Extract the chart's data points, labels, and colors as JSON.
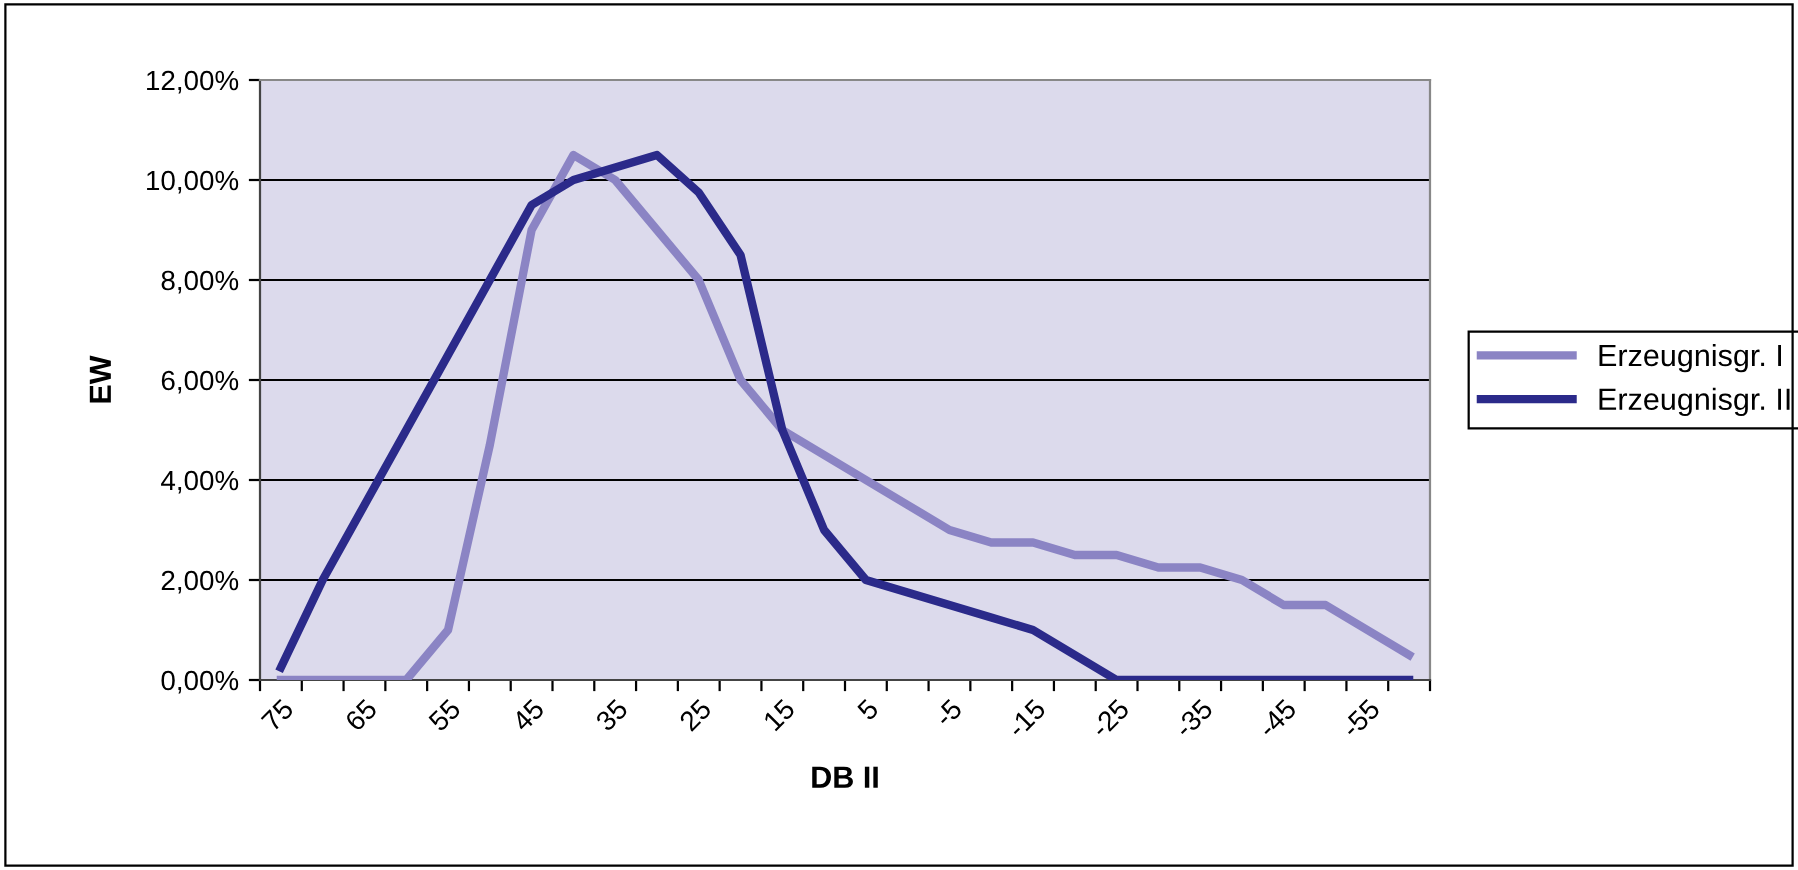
{
  "chart_data": {
    "type": "line",
    "xlabel": "DB II",
    "ylabel": "EW",
    "categories": [
      "75",
      null,
      "65",
      null,
      "55",
      null,
      "45",
      null,
      "35",
      null,
      "25",
      null,
      "15",
      null,
      "5",
      null,
      "-5",
      null,
      "-15",
      null,
      "-25",
      null,
      "-35",
      null,
      "-45",
      null,
      "-55",
      null
    ],
    "series": [
      {
        "name": "Erzeugnisgr. I",
        "color": "#8b84c4",
        "values": [
          0,
          0,
          0,
          0,
          1.0,
          4.7,
          9.0,
          10.5,
          10.0,
          9.0,
          8.0,
          6.0,
          5.0,
          4.5,
          4.0,
          3.5,
          3.0,
          2.75,
          2.75,
          2.5,
          2.5,
          2.25,
          2.25,
          2.0,
          1.5,
          1.5,
          1.0,
          0.5
        ]
      },
      {
        "name": "Erzeugnisgr. II",
        "color": "#2b2a8a",
        "values": [
          0.25,
          2.0,
          3.5,
          5.0,
          6.5,
          8.0,
          9.5,
          10.0,
          10.25,
          10.5,
          9.75,
          8.5,
          5.0,
          3.0,
          2.0,
          1.75,
          1.5,
          1.25,
          1.0,
          0.5,
          0,
          0,
          0,
          0,
          0,
          0,
          0,
          0
        ]
      }
    ],
    "ylim": [
      0,
      12
    ],
    "yticks": [
      {
        "value": 0,
        "label": "0,00%"
      },
      {
        "value": 2,
        "label": "2,00%"
      },
      {
        "value": 4,
        "label": "4,00%"
      },
      {
        "value": 6,
        "label": "6,00%"
      },
      {
        "value": 8,
        "label": "8,00%"
      },
      {
        "value": 10,
        "label": "10,00%"
      },
      {
        "value": 12,
        "label": "12,00%"
      }
    ],
    "grid": "y",
    "legend": "right",
    "marker": "none",
    "line_style": "solid"
  }
}
